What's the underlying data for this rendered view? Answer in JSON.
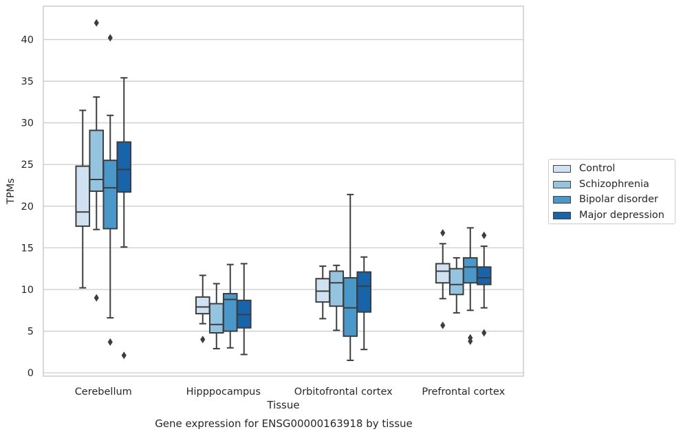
{
  "chart_data": {
    "type": "box",
    "ylabel": "TPMs",
    "xlabel": "Tissue",
    "caption": "Gene expression for ENSG00000163918 by tissue",
    "ylim": [
      -0.4,
      44.0
    ],
    "yticks": [
      0,
      5,
      10,
      15,
      20,
      25,
      30,
      35,
      40
    ],
    "grid": "horizontal",
    "legend_position": "right",
    "categories": [
      "Cerebellum",
      "Hipppocampus",
      "Orbitofrontal cortex",
      "Prefrontal cortex"
    ],
    "series": [
      {
        "name": "Control",
        "color": "#d0e1f2",
        "boxes": [
          {
            "whislo": 10.2,
            "q1": 17.6,
            "med": 19.3,
            "q3": 24.8,
            "whishi": 31.5,
            "fliers": []
          },
          {
            "whislo": 5.9,
            "q1": 7.1,
            "med": 7.9,
            "q3": 9.1,
            "whishi": 11.7,
            "fliers": [
              4.0
            ]
          },
          {
            "whislo": 6.5,
            "q1": 8.5,
            "med": 9.8,
            "q3": 11.3,
            "whishi": 12.8,
            "fliers": []
          },
          {
            "whislo": 8.9,
            "q1": 10.8,
            "med": 12.2,
            "q3": 13.1,
            "whishi": 15.5,
            "fliers": [
              16.8,
              5.7
            ]
          }
        ]
      },
      {
        "name": "Schizophrenia",
        "color": "#94c4df",
        "boxes": [
          {
            "whislo": 17.2,
            "q1": 21.8,
            "med": 23.2,
            "q3": 29.1,
            "whishi": 33.1,
            "fliers": [
              42.0,
              9.0
            ]
          },
          {
            "whislo": 2.9,
            "q1": 4.8,
            "med": 5.8,
            "q3": 8.3,
            "whishi": 10.7,
            "fliers": []
          },
          {
            "whislo": 5.1,
            "q1": 8.0,
            "med": 10.8,
            "q3": 12.2,
            "whishi": 12.9,
            "fliers": []
          },
          {
            "whislo": 7.2,
            "q1": 9.4,
            "med": 10.6,
            "q3": 12.5,
            "whishi": 13.8,
            "fliers": []
          }
        ]
      },
      {
        "name": "Bipolar disorder",
        "color": "#4a98c9",
        "boxes": [
          {
            "whislo": 6.6,
            "q1": 17.3,
            "med": 22.2,
            "q3": 25.5,
            "whishi": 30.9,
            "fliers": [
              40.2,
              3.7
            ]
          },
          {
            "whislo": 3.0,
            "q1": 5.0,
            "med": 8.8,
            "q3": 9.5,
            "whishi": 13.0,
            "fliers": []
          },
          {
            "whislo": 1.5,
            "q1": 4.4,
            "med": 7.8,
            "q3": 11.4,
            "whishi": 21.4,
            "fliers": []
          },
          {
            "whislo": 7.5,
            "q1": 10.8,
            "med": 12.7,
            "q3": 13.8,
            "whishi": 17.4,
            "fliers": [
              4.2,
              3.8
            ]
          }
        ]
      },
      {
        "name": "Major depression",
        "color": "#1764ab",
        "boxes": [
          {
            "whislo": 15.1,
            "q1": 21.7,
            "med": 24.4,
            "q3": 27.7,
            "whishi": 35.4,
            "fliers": [
              2.1
            ]
          },
          {
            "whislo": 2.2,
            "q1": 5.4,
            "med": 7.0,
            "q3": 8.7,
            "whishi": 13.1,
            "fliers": []
          },
          {
            "whislo": 2.8,
            "q1": 7.3,
            "med": 10.4,
            "q3": 12.1,
            "whishi": 13.9,
            "fliers": []
          },
          {
            "whislo": 7.8,
            "q1": 10.6,
            "med": 11.4,
            "q3": 12.7,
            "whishi": 15.2,
            "fliers": [
              16.5,
              4.8
            ]
          }
        ]
      }
    ]
  }
}
